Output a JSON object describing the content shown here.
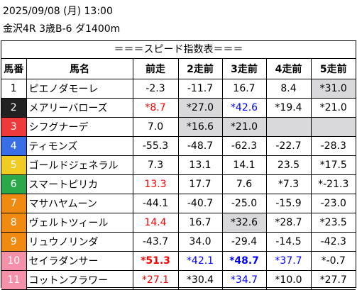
{
  "header": {
    "date_line": "2025/09/08 (月) 13:00",
    "race_line": "金沢4R 3歳B-6 ダ1400m"
  },
  "table_title": "＝＝＝スピード指数表＝＝＝",
  "columns": [
    "馬番",
    "馬名",
    "前走",
    "2走前",
    "3走前",
    "4走前",
    "5走前"
  ],
  "number_colors": [
    "#ffffff",
    "#222222",
    "#ee3333",
    "#3366dd",
    "#eecc22",
    "#22aa44",
    "#ff8800",
    "#ee88aa",
    "#ff8800",
    "#ee88aa"
  ],
  "rows": [
    {
      "num": "1",
      "num_bg": "#ffffff",
      "num_fg": "#000000",
      "name": "ピエノダモーレ",
      "cells": [
        {
          "v": "-2.3"
        },
        {
          "v": "-11.7"
        },
        {
          "v": "16.7"
        },
        {
          "v": "8.4"
        },
        {
          "v": "*31.0",
          "gray": true
        }
      ]
    },
    {
      "num": "2",
      "num_bg": "#222222",
      "num_fg": "#ffffff",
      "name": "メアリーバローズ",
      "cells": [
        {
          "v": "*8.7",
          "c": "red"
        },
        {
          "v": "*27.0",
          "gray": true
        },
        {
          "v": "*42.6",
          "c": "blue"
        },
        {
          "v": "*19.4"
        },
        {
          "v": "*21.0"
        }
      ]
    },
    {
      "num": "3",
      "num_bg": "#ee3a3a",
      "num_fg": "#ffffff",
      "name": "シフグナーデ",
      "cells": [
        {
          "v": "7.0"
        },
        {
          "v": "*16.6",
          "gray": true
        },
        {
          "v": "*21.0",
          "gray": true
        },
        {
          "v": "",
          "gray": true
        },
        {
          "v": "",
          "gray": true
        }
      ]
    },
    {
      "num": "4",
      "num_bg": "#3a6ee6",
      "num_fg": "#ffffff",
      "name": "ティモンズ",
      "cells": [
        {
          "v": "-55.3"
        },
        {
          "v": "-48.7"
        },
        {
          "v": "-62.3"
        },
        {
          "v": "-22.7"
        },
        {
          "v": "-28.3"
        }
      ]
    },
    {
      "num": "5",
      "num_bg": "#f0cc22",
      "num_fg": "#ffffff",
      "name": "ゴールドジェネラル",
      "cells": [
        {
          "v": "7.3"
        },
        {
          "v": "13.1"
        },
        {
          "v": "14.1"
        },
        {
          "v": "23.5"
        },
        {
          "v": "*17.5"
        }
      ]
    },
    {
      "num": "6",
      "num_bg": "#2aa84a",
      "num_fg": "#ffffff",
      "name": "スマートピリカ",
      "cells": [
        {
          "v": "13.3",
          "c": "red"
        },
        {
          "v": "17.7"
        },
        {
          "v": "7.6"
        },
        {
          "v": "*7.3"
        },
        {
          "v": "*-21.3"
        }
      ]
    },
    {
      "num": "7",
      "num_bg": "#f08a10",
      "num_fg": "#ffffff",
      "name": "マサハヤムーン",
      "cells": [
        {
          "v": "-44.1"
        },
        {
          "v": "-40.7"
        },
        {
          "v": "-25.0"
        },
        {
          "v": "-15.9"
        },
        {
          "v": "-23.0"
        }
      ]
    },
    {
      "num": "8",
      "num_bg": "#f08a10",
      "num_fg": "#ffffff",
      "name": "ヴェルトツィール",
      "cells": [
        {
          "v": "14.4",
          "c": "red"
        },
        {
          "v": "16.7"
        },
        {
          "v": "*32.6",
          "gray": true
        },
        {
          "v": "*28.7"
        },
        {
          "v": "*23.5"
        }
      ]
    },
    {
      "num": "9",
      "num_bg": "#f08a10",
      "num_fg": "#ffffff",
      "name": "リュウノリンダ",
      "cells": [
        {
          "v": "-43.7"
        },
        {
          "v": "34.0"
        },
        {
          "v": "-29.4"
        },
        {
          "v": "-14.5"
        },
        {
          "v": "-42.3"
        }
      ]
    },
    {
      "num": "10",
      "num_bg": "#f490a8",
      "num_fg": "#ffffff",
      "name": "セイラダンサー",
      "cells": [
        {
          "v": "*51.3",
          "c": "red",
          "b": true
        },
        {
          "v": "*42.1",
          "c": "blue"
        },
        {
          "v": "*48.7",
          "c": "blue",
          "b": true
        },
        {
          "v": "*37.7",
          "c": "blue"
        },
        {
          "v": "*-0.7"
        }
      ]
    },
    {
      "num": "11",
      "num_bg": "#f490a8",
      "num_fg": "#ffffff",
      "name": "コットンフラワー",
      "cells": [
        {
          "v": "*27.1",
          "c": "red"
        },
        {
          "v": "*30.4"
        },
        {
          "v": "*34.7",
          "c": "blue"
        },
        {
          "v": "*10.0"
        },
        {
          "v": "*27.7"
        }
      ]
    }
  ]
}
